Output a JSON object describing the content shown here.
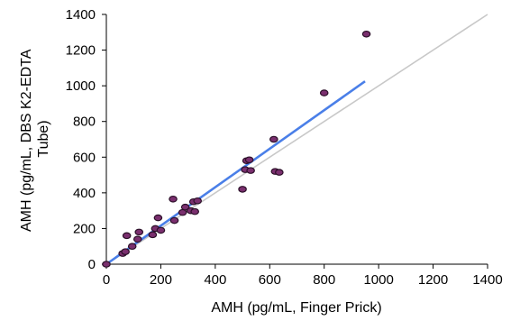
{
  "chart_data": {
    "type": "scatter",
    "title": "",
    "xlabel": "AMH (pg/mL, Finger Prick)",
    "ylabel_lines": [
      "AMH (pg/mL, DBS K2-EDTA",
      "Tube)"
    ],
    "xlim": [
      0,
      1400
    ],
    "ylim": [
      0,
      1400
    ],
    "xticks": [
      0,
      200,
      400,
      600,
      800,
      1000,
      1200,
      1400
    ],
    "yticks": [
      0,
      200,
      400,
      600,
      800,
      1000,
      1200,
      1400
    ],
    "grid": false,
    "legend": "none",
    "series": [
      {
        "points": [
          [
            0,
            0
          ],
          [
            60,
            60
          ],
          [
            70,
            70
          ],
          [
            75,
            160
          ],
          [
            95,
            100
          ],
          [
            115,
            140
          ],
          [
            120,
            180
          ],
          [
            170,
            165
          ],
          [
            180,
            200
          ],
          [
            190,
            260
          ],
          [
            200,
            190
          ],
          [
            245,
            365
          ],
          [
            250,
            245
          ],
          [
            280,
            290
          ],
          [
            290,
            320
          ],
          [
            310,
            300
          ],
          [
            320,
            350
          ],
          [
            325,
            295
          ],
          [
            335,
            355
          ],
          [
            500,
            420
          ],
          [
            510,
            530
          ],
          [
            515,
            580
          ],
          [
            525,
            585
          ],
          [
            530,
            525
          ],
          [
            615,
            700
          ],
          [
            620,
            520
          ],
          [
            635,
            515
          ],
          [
            800,
            960
          ],
          [
            955,
            1290
          ]
        ]
      }
    ],
    "fit_line": {
      "x": [
        0,
        950
      ],
      "y": [
        0,
        1025
      ]
    },
    "identity_line": {
      "x": [
        0,
        1400
      ],
      "y": [
        0,
        1400
      ]
    },
    "colors": {
      "point_fill": "#7a2f6e",
      "point_stroke": "#2b0f28",
      "fit_line": "#4a7fe8",
      "identity_line": "#c8c8c8",
      "axis": "#000000"
    }
  }
}
